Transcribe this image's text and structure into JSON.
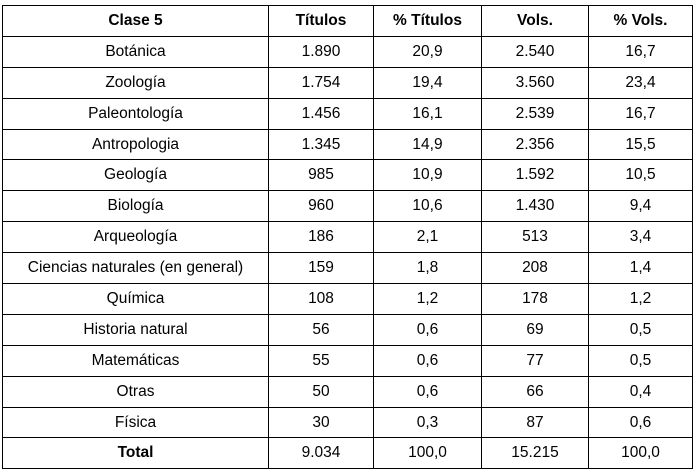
{
  "table": {
    "headers": [
      "Clase 5",
      "Títulos",
      "% Títulos",
      "Vols.",
      "% Vols."
    ],
    "rows": [
      [
        "Botánica",
        "1.890",
        "20,9",
        "2.540",
        "16,7"
      ],
      [
        "Zoología",
        "1.754",
        "19,4",
        "3.560",
        "23,4"
      ],
      [
        "Paleontología",
        "1.456",
        "16,1",
        "2.539",
        "16,7"
      ],
      [
        "Antropologia",
        "1.345",
        "14,9",
        "2.356",
        "15,5"
      ],
      [
        "Geología",
        "985",
        "10,9",
        "1.592",
        "10,5"
      ],
      [
        "Biología",
        "960",
        "10,6",
        "1.430",
        "9,4"
      ],
      [
        "Arqueología",
        "186",
        "2,1",
        "513",
        "3,4"
      ],
      [
        "Ciencias naturales (en general)",
        "159",
        "1,8",
        "208",
        "1,4"
      ],
      [
        "Química",
        "108",
        "1,2",
        "178",
        "1,2"
      ],
      [
        "Historia natural",
        "56",
        "0,6",
        "69",
        "0,5"
      ],
      [
        "Matemáticas",
        "55",
        "0,6",
        "77",
        "0,5"
      ],
      [
        "Otras",
        "50",
        "0,6",
        "66",
        "0,4"
      ],
      [
        "Física",
        "30",
        "0,3",
        "87",
        "0,6"
      ]
    ],
    "total": [
      "Total",
      "9.034",
      "100,0",
      "15.215",
      "100,0"
    ]
  }
}
